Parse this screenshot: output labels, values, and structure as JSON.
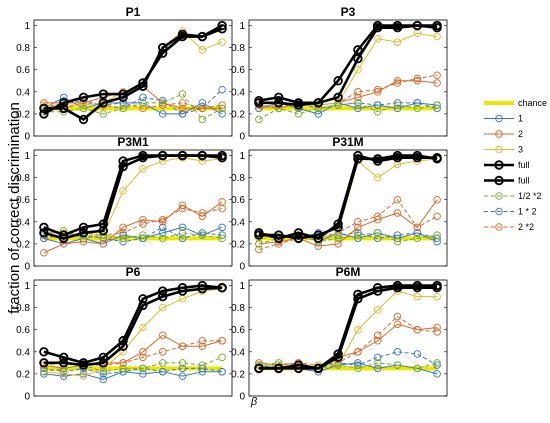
{
  "chart_data": {
    "type": "line",
    "ylabel": "fraction of correct discrimination",
    "xlabel": "β",
    "ylim": [
      0,
      1.05
    ],
    "yticks": [
      0,
      0.2,
      0.4,
      0.6,
      0.8,
      1
    ],
    "x": [
      1,
      2,
      3,
      4,
      5,
      6,
      7,
      8,
      9,
      10
    ],
    "grid": false,
    "legend_position": "right",
    "legend": [
      {
        "label": "chance",
        "color": "#e8e800",
        "style": "thick",
        "marker": "none"
      },
      {
        "label": "1",
        "color": "#3a75c4",
        "style": "solid",
        "marker": "circle"
      },
      {
        "label": "2",
        "color": "#d9692c",
        "style": "solid",
        "marker": "circle"
      },
      {
        "label": "3",
        "color": "#e2b92f",
        "style": "solid",
        "marker": "circle"
      },
      {
        "label": "full",
        "color": "#000000",
        "style": "bold",
        "marker": "circle"
      },
      {
        "label": "full",
        "color": "#000000",
        "style": "bold",
        "marker": "circle"
      },
      {
        "label": "1/2 *2",
        "color": "#77ac30",
        "style": "dashed",
        "marker": "circle"
      },
      {
        "label": "1 * 2",
        "color": "#3a75c4",
        "style": "dashed",
        "marker": "circle"
      },
      {
        "label": "2 *2",
        "color": "#d9692c",
        "style": "dashed",
        "marker": "circle"
      }
    ],
    "panels": [
      {
        "title": "P1",
        "chance": 0.25,
        "series": [
          {
            "name": "1",
            "values": [
              0.25,
              0.35,
              0.25,
              0.3,
              0.3,
              0.3,
              0.2,
              0.2,
              0.3,
              0.2
            ]
          },
          {
            "name": "2",
            "values": [
              0.3,
              0.3,
              0.3,
              0.35,
              0.4,
              0.45,
              0.3,
              0.25,
              0.25,
              0.25
            ]
          },
          {
            "name": "3",
            "values": [
              0.28,
              0.28,
              0.28,
              0.3,
              0.4,
              0.45,
              0.8,
              0.95,
              0.78,
              0.85
            ]
          },
          {
            "name": "full",
            "values": [
              0.25,
              0.25,
              0.15,
              0.3,
              0.35,
              0.45,
              0.8,
              0.92,
              0.9,
              1.0
            ]
          },
          {
            "name": "full",
            "values": [
              0.2,
              0.3,
              0.35,
              0.38,
              0.38,
              0.48,
              0.75,
              0.9,
              0.9,
              0.97
            ]
          },
          {
            "name": "1/2 *2",
            "values": [
              0.22,
              0.22,
              0.25,
              0.2,
              0.25,
              0.3,
              0.3,
              0.38,
              0.15,
              0.25
            ]
          },
          {
            "name": "1 * 2",
            "values": [
              0.25,
              0.3,
              0.32,
              0.28,
              0.25,
              0.35,
              0.32,
              0.2,
              0.25,
              0.42
            ]
          },
          {
            "name": "2 *2",
            "values": [
              0.28,
              0.25,
              0.3,
              0.28,
              0.3,
              0.25,
              0.28,
              0.3,
              0.25,
              0.28
            ]
          }
        ]
      },
      {
        "title": "P3",
        "chance": 0.25,
        "series": [
          {
            "name": "1",
            "values": [
              0.25,
              0.3,
              0.25,
              0.2,
              0.3,
              0.25,
              0.28,
              0.25,
              0.3,
              0.28
            ]
          },
          {
            "name": "2",
            "values": [
              0.28,
              0.25,
              0.3,
              0.28,
              0.3,
              0.35,
              0.4,
              0.5,
              0.5,
              0.48
            ]
          },
          {
            "name": "3",
            "values": [
              0.3,
              0.3,
              0.28,
              0.28,
              0.3,
              0.6,
              0.88,
              0.85,
              0.93,
              0.9
            ]
          },
          {
            "name": "full",
            "values": [
              0.32,
              0.35,
              0.3,
              0.3,
              0.5,
              0.78,
              1.0,
              1.0,
              1.0,
              1.0
            ]
          },
          {
            "name": "full",
            "values": [
              0.3,
              0.3,
              0.28,
              0.3,
              0.35,
              0.7,
              0.98,
              0.98,
              1.0,
              0.98
            ]
          },
          {
            "name": "1/2 *2",
            "values": [
              0.15,
              0.25,
              0.2,
              0.25,
              0.28,
              0.3,
              0.22,
              0.28,
              0.25,
              0.28
            ]
          },
          {
            "name": "1 * 2",
            "values": [
              0.28,
              0.25,
              0.3,
              0.25,
              0.28,
              0.3,
              0.28,
              0.3,
              0.3,
              0.25
            ]
          },
          {
            "name": "2 *2",
            "values": [
              0.25,
              0.28,
              0.3,
              0.28,
              0.3,
              0.4,
              0.42,
              0.48,
              0.52,
              0.55
            ]
          }
        ]
      },
      {
        "title": "P3M1",
        "chance": 0.25,
        "series": [
          {
            "name": "1",
            "values": [
              0.25,
              0.2,
              0.25,
              0.2,
              0.28,
              0.25,
              0.3,
              0.35,
              0.28,
              0.35
            ]
          },
          {
            "name": "2",
            "values": [
              0.12,
              0.2,
              0.22,
              0.2,
              0.35,
              0.42,
              0.4,
              0.55,
              0.45,
              0.58
            ]
          },
          {
            "name": "3",
            "values": [
              0.3,
              0.3,
              0.28,
              0.28,
              0.68,
              0.88,
              0.95,
              0.98,
              0.95,
              0.97
            ]
          },
          {
            "name": "full",
            "values": [
              0.35,
              0.28,
              0.35,
              0.38,
              0.95,
              1.0,
              1.0,
              1.0,
              1.0,
              1.0
            ]
          },
          {
            "name": "full",
            "values": [
              0.3,
              0.25,
              0.3,
              0.32,
              0.9,
              0.98,
              1.0,
              1.0,
              1.0,
              0.98
            ]
          },
          {
            "name": "1/2 *2",
            "values": [
              0.3,
              0.32,
              0.25,
              0.28,
              0.25,
              0.28,
              0.25,
              0.3,
              0.28,
              0.25
            ]
          },
          {
            "name": "1 * 2",
            "values": [
              0.28,
              0.25,
              0.28,
              0.25,
              0.22,
              0.25,
              0.35,
              0.25,
              0.3,
              0.28
            ]
          },
          {
            "name": "2 *2",
            "values": [
              0.25,
              0.28,
              0.3,
              0.28,
              0.3,
              0.38,
              0.42,
              0.52,
              0.48,
              0.52
            ]
          }
        ]
      },
      {
        "title": "P31M",
        "chance": 0.25,
        "series": [
          {
            "name": "1",
            "values": [
              0.28,
              0.25,
              0.3,
              0.22,
              0.3,
              0.25,
              0.3,
              0.25,
              0.3,
              0.22
            ]
          },
          {
            "name": "2",
            "values": [
              0.2,
              0.22,
              0.25,
              0.18,
              0.2,
              0.35,
              0.42,
              0.48,
              0.35,
              0.6
            ]
          },
          {
            "name": "3",
            "values": [
              0.25,
              0.28,
              0.25,
              0.25,
              0.3,
              0.95,
              0.8,
              0.92,
              0.95,
              0.97
            ]
          },
          {
            "name": "full",
            "values": [
              0.3,
              0.25,
              0.3,
              0.25,
              0.38,
              1.0,
              0.95,
              0.98,
              0.98,
              0.98
            ]
          },
          {
            "name": "full",
            "values": [
              0.28,
              0.28,
              0.25,
              0.28,
              0.35,
              0.97,
              0.97,
              1.0,
              1.0,
              0.97
            ]
          },
          {
            "name": "1/2 *2",
            "values": [
              0.2,
              0.25,
              0.28,
              0.22,
              0.25,
              0.28,
              0.3,
              0.22,
              0.25,
              0.28
            ]
          },
          {
            "name": "1 * 2",
            "values": [
              0.3,
              0.28,
              0.25,
              0.3,
              0.28,
              0.3,
              0.25,
              0.28,
              0.3,
              0.25
            ]
          },
          {
            "name": "2 *2",
            "values": [
              0.15,
              0.2,
              0.25,
              0.25,
              0.3,
              0.4,
              0.45,
              0.6,
              0.35,
              0.45
            ]
          }
        ]
      },
      {
        "title": "P6",
        "chance": 0.25,
        "series": [
          {
            "name": "1",
            "values": [
              0.2,
              0.18,
              0.2,
              0.15,
              0.22,
              0.2,
              0.22,
              0.18,
              0.22,
              0.22
            ]
          },
          {
            "name": "2",
            "values": [
              0.28,
              0.25,
              0.28,
              0.3,
              0.3,
              0.4,
              0.55,
              0.45,
              0.45,
              0.5
            ]
          },
          {
            "name": "3",
            "values": [
              0.22,
              0.2,
              0.18,
              0.25,
              0.4,
              0.62,
              0.8,
              0.88,
              0.95,
              0.97
            ]
          },
          {
            "name": "full",
            "values": [
              0.4,
              0.35,
              0.3,
              0.35,
              0.5,
              0.88,
              0.95,
              0.98,
              1.0,
              0.98
            ]
          },
          {
            "name": "full",
            "values": [
              0.3,
              0.3,
              0.28,
              0.3,
              0.45,
              0.82,
              0.9,
              0.95,
              0.97,
              0.98
            ]
          },
          {
            "name": "1/2 *2",
            "values": [
              0.22,
              0.25,
              0.28,
              0.22,
              0.25,
              0.25,
              0.3,
              0.3,
              0.28,
              0.35
            ]
          },
          {
            "name": "1 * 2",
            "values": [
              0.25,
              0.22,
              0.25,
              0.2,
              0.22,
              0.25,
              0.22,
              0.25,
              0.25,
              0.22
            ]
          },
          {
            "name": "2 *2",
            "values": [
              0.28,
              0.3,
              0.28,
              0.28,
              0.3,
              0.35,
              0.4,
              0.45,
              0.5,
              0.5
            ]
          }
        ]
      },
      {
        "title": "P6M",
        "chance": 0.25,
        "series": [
          {
            "name": "1",
            "values": [
              0.28,
              0.25,
              0.25,
              0.22,
              0.28,
              0.3,
              0.25,
              0.28,
              0.25,
              0.2
            ]
          },
          {
            "name": "2",
            "values": [
              0.3,
              0.28,
              0.3,
              0.25,
              0.35,
              0.4,
              0.5,
              0.65,
              0.6,
              0.62
            ]
          },
          {
            "name": "3",
            "values": [
              0.28,
              0.28,
              0.25,
              0.28,
              0.28,
              0.6,
              0.78,
              0.95,
              0.9,
              0.9
            ]
          },
          {
            "name": "full",
            "values": [
              0.25,
              0.25,
              0.28,
              0.25,
              0.38,
              0.92,
              0.98,
              1.0,
              1.0,
              1.0
            ]
          },
          {
            "name": "full",
            "values": [
              0.25,
              0.25,
              0.25,
              0.25,
              0.35,
              0.88,
              0.95,
              0.98,
              0.98,
              0.98
            ]
          },
          {
            "name": "1/2 *2",
            "values": [
              0.28,
              0.3,
              0.28,
              0.25,
              0.28,
              0.25,
              0.3,
              0.28,
              0.25,
              0.3
            ]
          },
          {
            "name": "1 * 2",
            "values": [
              0.25,
              0.28,
              0.25,
              0.25,
              0.3,
              0.28,
              0.35,
              0.4,
              0.38,
              0.28
            ]
          },
          {
            "name": "2 *2",
            "values": [
              0.28,
              0.25,
              0.3,
              0.28,
              0.3,
              0.4,
              0.55,
              0.72,
              0.6,
              0.58
            ]
          }
        ]
      }
    ]
  }
}
